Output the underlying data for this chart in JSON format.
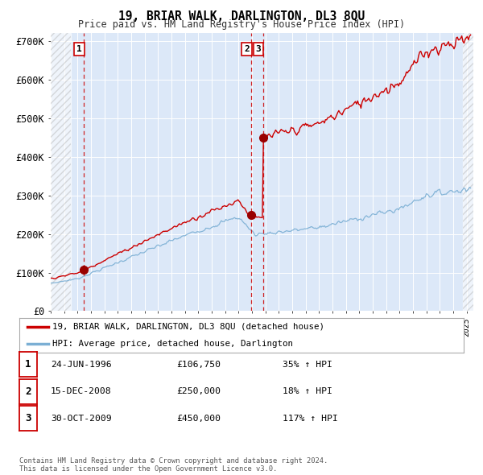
{
  "title": "19, BRIAR WALK, DARLINGTON, DL3 8QU",
  "subtitle": "Price paid vs. HM Land Registry's House Price Index (HPI)",
  "xlim": [
    1994.0,
    2025.5
  ],
  "ylim": [
    0,
    720000
  ],
  "yticks": [
    0,
    100000,
    200000,
    300000,
    400000,
    500000,
    600000,
    700000
  ],
  "ytick_labels": [
    "£0",
    "£100K",
    "£200K",
    "£300K",
    "£400K",
    "£500K",
    "£600K",
    "£700K"
  ],
  "sale_color": "#cc0000",
  "hpi_color": "#7bafd4",
  "marker_color": "#990000",
  "vline_color": "#cc0000",
  "bg_color": "#ffffff",
  "plot_bg": "#dce8f8",
  "grid_color": "#ffffff",
  "hatch_xlim": [
    1994.0,
    1995.5
  ],
  "sales": [
    {
      "date_num": 1996.48,
      "price": 106750,
      "label": "1"
    },
    {
      "date_num": 2008.96,
      "price": 250000,
      "label": "2"
    },
    {
      "date_num": 2009.83,
      "price": 450000,
      "label": "3"
    }
  ],
  "legend_entries": [
    {
      "label": "19, BRIAR WALK, DARLINGTON, DL3 8QU (detached house)",
      "color": "#cc0000"
    },
    {
      "label": "HPI: Average price, detached house, Darlington",
      "color": "#7bafd4"
    }
  ],
  "table_rows": [
    {
      "num": "1",
      "date": "24-JUN-1996",
      "price": "£106,750",
      "change": "35% ↑ HPI"
    },
    {
      "num": "2",
      "date": "15-DEC-2008",
      "price": "£250,000",
      "change": "18% ↑ HPI"
    },
    {
      "num": "3",
      "date": "30-OCT-2009",
      "price": "£450,000",
      "change": "117% ↑ HPI"
    }
  ],
  "footer": "Contains HM Land Registry data © Crown copyright and database right 2024.\nThis data is licensed under the Open Government Licence v3.0."
}
